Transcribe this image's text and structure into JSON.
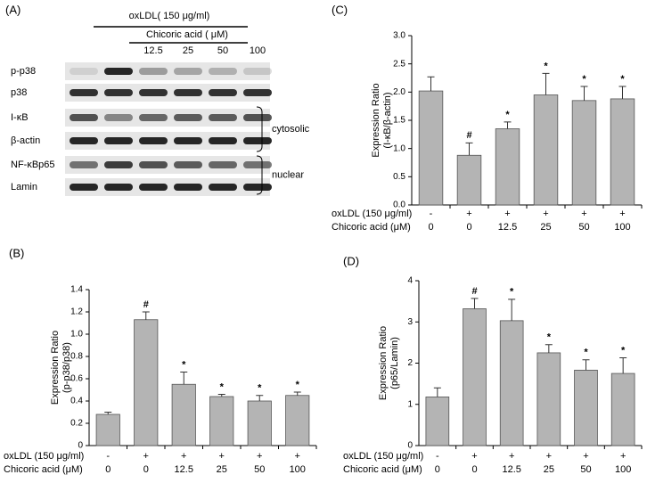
{
  "blot": {
    "panel": "(A)",
    "treatment": "oxLDL( 150 μg/ml)",
    "compound": "Chicoric acid ( μM)",
    "concentrations": [
      "12.5",
      "25",
      "50",
      "100"
    ],
    "rows": [
      "p-p38",
      "p38",
      "I-κB",
      "β-actin",
      "NF-κBp65",
      "Lamin"
    ],
    "groups": [
      "cytosolic",
      "nuclear"
    ]
  },
  "chart_data": [
    {
      "type": "bar",
      "title": "(B)",
      "ylabel": [
        "Expression Ratio",
        "(p-p38/p38)"
      ],
      "categories": [
        "0",
        "0",
        "12.5",
        "25",
        "50",
        "100"
      ],
      "x_rows": [
        {
          "label": "oxLDL (150 μg/ml)",
          "values": [
            "-",
            "+",
            "+",
            "+",
            "+",
            "+"
          ]
        },
        {
          "label": "Chicoric acid (μM)",
          "values": [
            "0",
            "0",
            "12.5",
            "25",
            "50",
            "100"
          ]
        }
      ],
      "values": [
        0.28,
        1.13,
        0.55,
        0.44,
        0.4,
        0.45
      ],
      "errors": [
        0.02,
        0.07,
        0.11,
        0.02,
        0.05,
        0.03
      ],
      "annotations": [
        null,
        "#",
        "*",
        "*",
        "*",
        "*"
      ],
      "color": "#b4b4b4",
      "ylim": [
        0,
        1.4
      ],
      "yticks": [
        0,
        0.2,
        0.4,
        0.6,
        0.8,
        {
          "value": 1.0,
          "label": "1.0"
        },
        1.2,
        1.4
      ]
    },
    {
      "type": "bar",
      "title": "(C)",
      "ylabel": [
        "Expression Ratio",
        "(I-κB/β-actin)"
      ],
      "categories": [
        "0",
        "0",
        "12.5",
        "25",
        "50",
        "100"
      ],
      "x_rows": [
        {
          "label": "oxLDL (150 μg/ml)",
          "values": [
            "-",
            "+",
            "+",
            "+",
            "+",
            "+"
          ]
        },
        {
          "label": "Chicoric acid (μM)",
          "values": [
            "0",
            "0",
            "12.5",
            "25",
            "50",
            "100"
          ]
        }
      ],
      "values": [
        2.02,
        0.88,
        1.35,
        1.95,
        1.85,
        1.88
      ],
      "errors": [
        0.25,
        0.22,
        0.12,
        0.38,
        0.25,
        0.22
      ],
      "annotations": [
        null,
        "#",
        "*",
        "*",
        "*",
        "*"
      ],
      "color": "#b4b4b4",
      "ylim": [
        0,
        3.0
      ],
      "yticks": [
        {
          "value": 0,
          "label": "0.0"
        },
        0.5,
        {
          "value": 1.0,
          "label": "1.0"
        },
        1.5,
        {
          "value": 2.0,
          "label": "2.0"
        },
        2.5,
        {
          "value": 3.0,
          "label": "3.0"
        }
      ]
    },
    {
      "type": "bar",
      "title": "(D)",
      "ylabel": [
        "Expression Ratio",
        "(p65/Lamin)"
      ],
      "categories": [
        "0",
        "0",
        "12.5",
        "25",
        "50",
        "100"
      ],
      "x_rows": [
        {
          "label": "oxLDL (150 μg/ml)",
          "values": [
            "-",
            "+",
            "+",
            "+",
            "+",
            "+"
          ]
        },
        {
          "label": "Chicoric acid (μM)",
          "values": [
            "0",
            "0",
            "12.5",
            "25",
            "50",
            "100"
          ]
        }
      ],
      "values": [
        1.18,
        3.32,
        3.03,
        2.25,
        1.83,
        1.75
      ],
      "errors": [
        0.22,
        0.25,
        0.52,
        0.2,
        0.25,
        0.38
      ],
      "annotations": [
        null,
        "#",
        "*",
        "*",
        "*",
        "*"
      ],
      "color": "#b4b4b4",
      "ylim": [
        0,
        4
      ],
      "yticks": [
        0,
        1,
        2,
        3,
        4
      ]
    }
  ]
}
